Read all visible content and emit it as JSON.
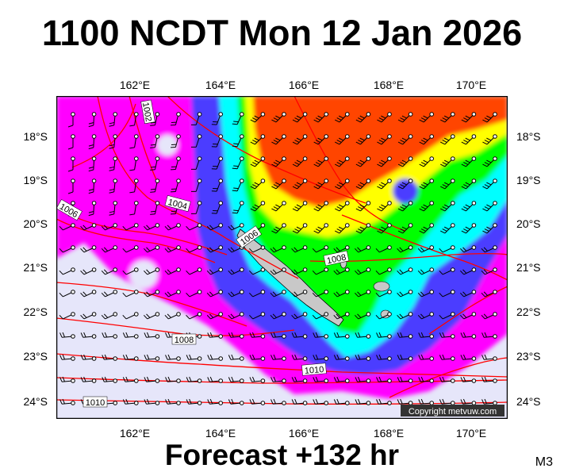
{
  "title": "1100 NCDT Mon 12 Jan 2026",
  "subtitle": "Forecast +132 hr",
  "model_tag": "M3",
  "copyright": "Copyright metvuw.com",
  "map": {
    "lon_labels": [
      "162°E",
      "164°E",
      "166°E",
      "168°E",
      "170°E"
    ],
    "lat_labels": [
      "18°S",
      "19°S",
      "20°S",
      "21°S",
      "22°S",
      "23°S",
      "24°S"
    ],
    "isobar_labels": [
      "1002",
      "1004",
      "1006",
      "1006",
      "1008",
      "1008",
      "1010",
      "1010"
    ],
    "colors": {
      "isobar": "#ff0000",
      "calm": "#e6e6fa",
      "light": "#ff00ff",
      "moderate": "#4b3cff",
      "fresh": "#00ffff",
      "strong": "#00ff00",
      "gale": "#ffff00",
      "storm": "#ff4500",
      "land": "#c8c8c8"
    }
  }
}
